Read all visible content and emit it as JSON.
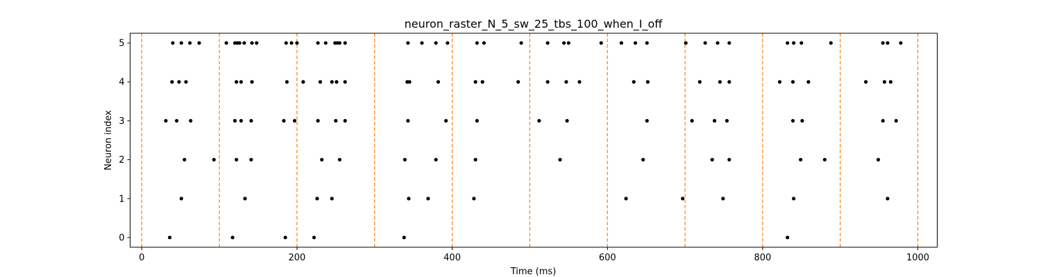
{
  "chart_data": {
    "type": "scatter",
    "title": "neuron_raster_N_5_sw_25_tbs_100_when_I_off",
    "xlabel": "Time (ms)",
    "ylabel": "Neuron index",
    "xlim": [
      -15,
      1025
    ],
    "ylim": [
      -0.25,
      5.25
    ],
    "xticks": [
      0,
      200,
      400,
      600,
      800,
      1000
    ],
    "yticks": [
      0,
      1,
      2,
      3,
      4,
      5
    ],
    "xtick_labels": [
      "0",
      "200",
      "400",
      "600",
      "800",
      "1000"
    ],
    "ytick_labels": [
      "0",
      "1",
      "2",
      "3",
      "4",
      "5"
    ],
    "grid": false,
    "marker_color": "#000000",
    "vline_color": "#ff7f0e",
    "vline_style": "dashed",
    "vlines": [
      0,
      100,
      200,
      300,
      400,
      500,
      600,
      700,
      800,
      900,
      1000
    ],
    "series": [
      {
        "neuron": 0,
        "spikes": [
          36,
          117,
          185,
          222,
          338,
          832
        ]
      },
      {
        "neuron": 1,
        "spikes": [
          51,
          133,
          226,
          245,
          344,
          369,
          428,
          624,
          697,
          749,
          840,
          961
        ]
      },
      {
        "neuron": 2,
        "spikes": [
          55,
          93,
          122,
          141,
          232,
          255,
          339,
          379,
          430,
          539,
          646,
          735,
          757,
          849,
          880,
          949
        ]
      },
      {
        "neuron": 3,
        "spikes": [
          31,
          45,
          63,
          120,
          128,
          141,
          183,
          197,
          227,
          250,
          262,
          343,
          392,
          432,
          512,
          548,
          651,
          709,
          738,
          754,
          839,
          851,
          955,
          972
        ]
      },
      {
        "neuron": 4,
        "spikes": [
          39,
          48,
          57,
          122,
          128,
          142,
          187,
          208,
          230,
          245,
          251,
          262,
          342,
          345,
          382,
          430,
          439,
          485,
          523,
          547,
          564,
          634,
          652,
          719,
          745,
          757,
          822,
          839,
          859,
          933,
          957,
          965
        ]
      },
      {
        "neuron": 5,
        "spikes": [
          40,
          51,
          62,
          74,
          109,
          120,
          123,
          126,
          132,
          142,
          148,
          186,
          193,
          200,
          227,
          237,
          249,
          252,
          255,
          262,
          343,
          361,
          379,
          394,
          432,
          441,
          489,
          523,
          544,
          550,
          592,
          618,
          636,
          651,
          701,
          726,
          742,
          757,
          832,
          840,
          850,
          888,
          955,
          961,
          978
        ]
      }
    ]
  }
}
